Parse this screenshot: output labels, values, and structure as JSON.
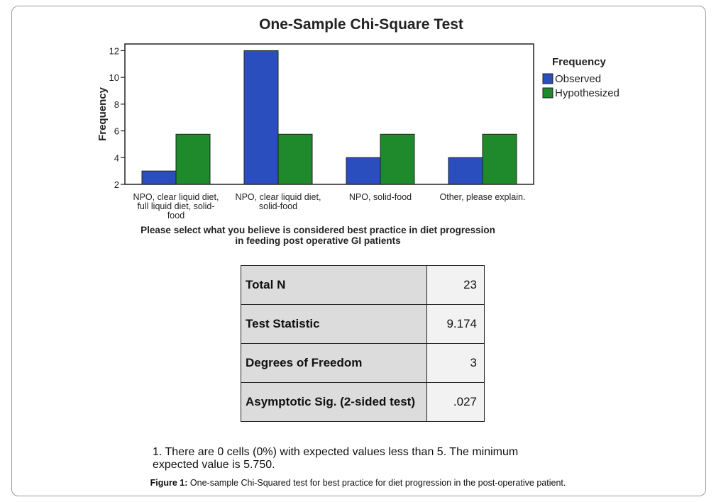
{
  "chart_data": {
    "type": "bar",
    "title": "One-Sample Chi-Square Test",
    "xlabel": "Please select what you believe is considered best practice in diet progression in feeding post operative GI patients",
    "xlabel_lines": [
      "Please select what you believe is considered best practice in diet progression",
      "in feeding post operative GI patients"
    ],
    "ylabel": "Frequency",
    "ylim": [
      2,
      12.5
    ],
    "yticks": [
      2,
      4,
      6,
      8,
      10,
      12
    ],
    "categories": [
      "NPO, clear liquid diet, full liquid diet, solid-food",
      "NPO, clear liquid diet, solid-food",
      "NPO, solid-food",
      "Other, please explain."
    ],
    "category_lines": [
      [
        "NPO, clear liquid diet,",
        "full liquid diet, solid-",
        "food"
      ],
      [
        "NPO, clear liquid diet,",
        "solid-food"
      ],
      [
        "NPO, solid-food"
      ],
      [
        "Other, please explain."
      ]
    ],
    "series": [
      {
        "name": "Observed",
        "values": [
          3,
          12,
          4,
          4
        ],
        "color": "#2a4ebd"
      },
      {
        "name": "Hypothesized",
        "values": [
          5.75,
          5.75,
          5.75,
          5.75
        ],
        "color": "#1f8a2c"
      }
    ],
    "legend_title": "Frequency",
    "legend_position": "right",
    "grid": false
  },
  "stats_table": {
    "rows": [
      {
        "label": "Total N",
        "value": "23"
      },
      {
        "label": "Test Statistic",
        "value": "9.174"
      },
      {
        "label": "Degrees of Freedom",
        "value": "3"
      },
      {
        "label": "Asymptotic Sig. (2-sided test)",
        "value": ".027"
      }
    ]
  },
  "footnote": {
    "line1": "1.  There are 0 cells (0%) with expected values less than 5.  The minimum",
    "line2": "expected value is 5.750."
  },
  "caption": {
    "label": "Figure 1:",
    "text": " One-sample Chi-Squared test for best practice for diet progression in the post-operative patient."
  }
}
